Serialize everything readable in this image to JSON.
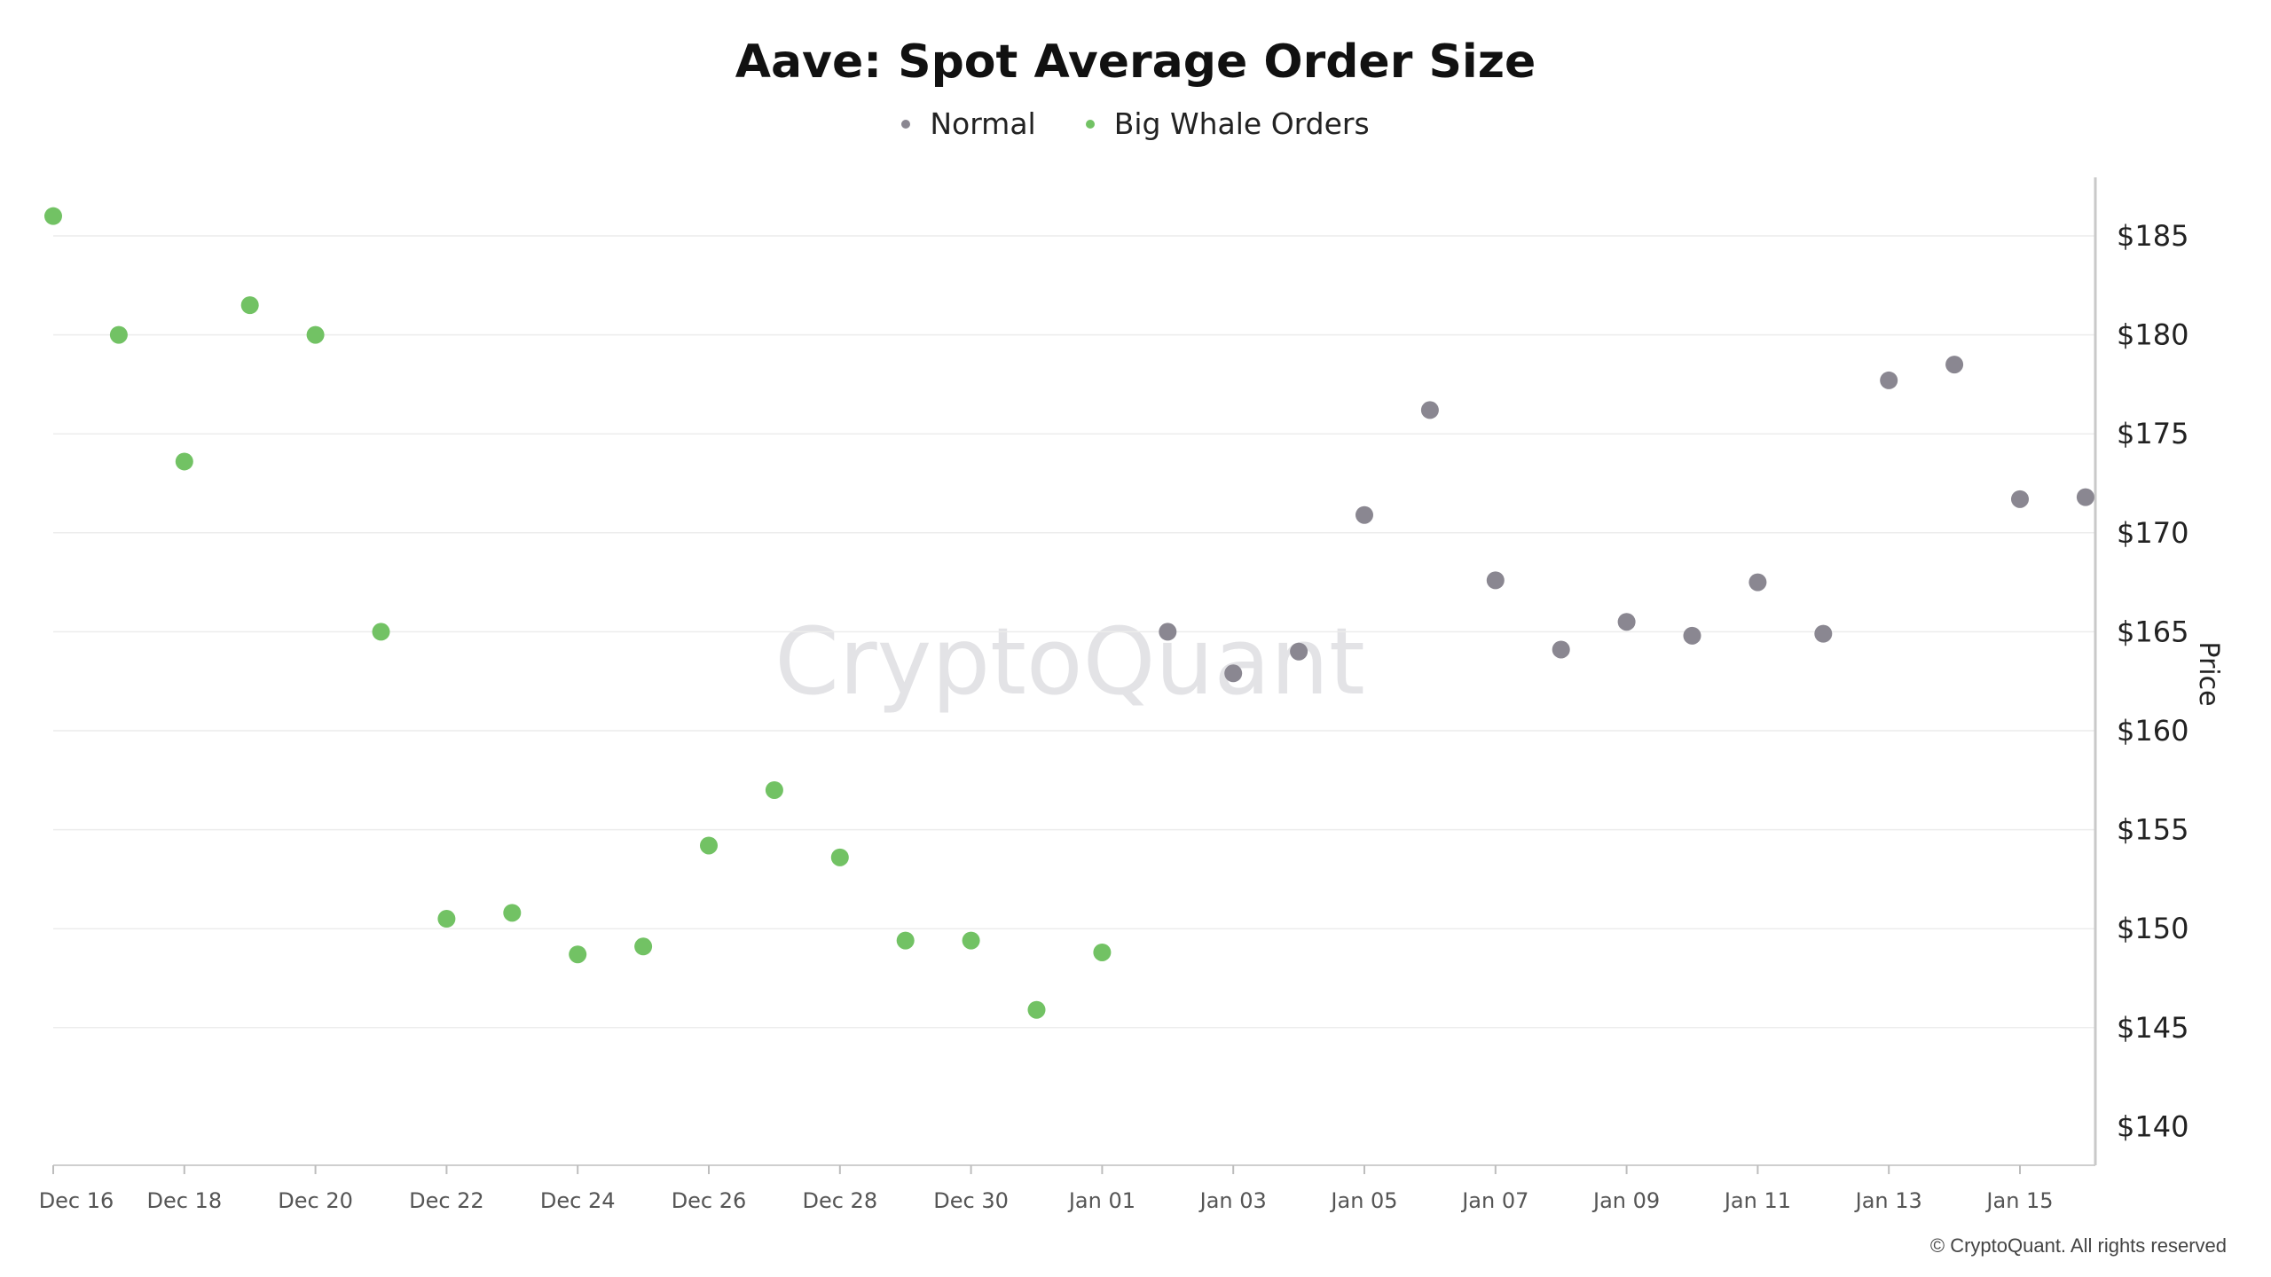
{
  "chart_data": {
    "type": "scatter",
    "title": "Aave: Spot Average Order Size",
    "ylabel": "Price",
    "ylim": [
      140,
      188
    ],
    "yticks": [
      140,
      145,
      150,
      155,
      160,
      165,
      170,
      175,
      180,
      185
    ],
    "ytick_labels": [
      "$140",
      "$145",
      "$150",
      "$155",
      "$160",
      "$165",
      "$170",
      "$175",
      "$180",
      "$185"
    ],
    "x_start": "Dec 16",
    "xticks": [
      "Dec 16",
      "Dec 18",
      "Dec 20",
      "Dec 22",
      "Dec 24",
      "Dec 26",
      "Dec 28",
      "Dec 30",
      "Jan 01",
      "Jan 03",
      "Jan 05",
      "Jan 07",
      "Jan 09",
      "Jan 11",
      "Jan 13",
      "Jan 15"
    ],
    "grid": true,
    "legend_position": "top-center",
    "series": [
      {
        "name": "Normal",
        "color": "#8a8791",
        "points": [
          {
            "x": "Jan 02",
            "y": 165.0
          },
          {
            "x": "Jan 03",
            "y": 162.9
          },
          {
            "x": "Jan 04",
            "y": 164.0
          },
          {
            "x": "Jan 05",
            "y": 170.9
          },
          {
            "x": "Jan 06",
            "y": 176.2
          },
          {
            "x": "Jan 07",
            "y": 167.6
          },
          {
            "x": "Jan 08",
            "y": 164.1
          },
          {
            "x": "Jan 09",
            "y": 165.5
          },
          {
            "x": "Jan 10",
            "y": 164.8
          },
          {
            "x": "Jan 11",
            "y": 167.5
          },
          {
            "x": "Jan 12",
            "y": 164.9
          },
          {
            "x": "Jan 13",
            "y": 177.7
          },
          {
            "x": "Jan 14",
            "y": 178.5
          },
          {
            "x": "Jan 15",
            "y": 171.7
          },
          {
            "x": "Jan 16",
            "y": 171.8
          }
        ]
      },
      {
        "name": "Big Whale Orders",
        "color": "#72c264",
        "points": [
          {
            "x": "Dec 16",
            "y": 186.0
          },
          {
            "x": "Dec 17",
            "y": 180.0
          },
          {
            "x": "Dec 18",
            "y": 173.6
          },
          {
            "x": "Dec 19",
            "y": 181.5
          },
          {
            "x": "Dec 20",
            "y": 180.0
          },
          {
            "x": "Dec 21",
            "y": 165.0
          },
          {
            "x": "Dec 22",
            "y": 150.5
          },
          {
            "x": "Dec 23",
            "y": 150.8
          },
          {
            "x": "Dec 24",
            "y": 148.7
          },
          {
            "x": "Dec 25",
            "y": 149.1
          },
          {
            "x": "Dec 26",
            "y": 154.2
          },
          {
            "x": "Dec 27",
            "y": 157.0
          },
          {
            "x": "Dec 28",
            "y": 153.6
          },
          {
            "x": "Dec 29",
            "y": 149.4
          },
          {
            "x": "Dec 30",
            "y": 149.4
          },
          {
            "x": "Dec 31",
            "y": 145.9
          },
          {
            "x": "Jan 01",
            "y": 148.8
          }
        ]
      }
    ]
  },
  "watermark": "CryptoQuant",
  "copyright": "© CryptoQuant. All rights reserved"
}
